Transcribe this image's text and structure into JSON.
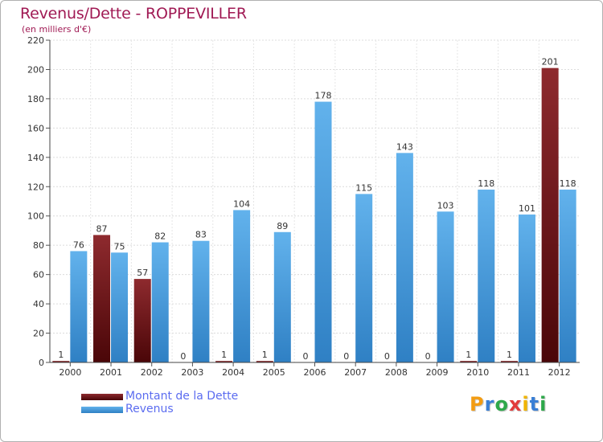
{
  "header": {
    "title": "Revenus/Dette - ROPPEVILLER",
    "subtitle": "(en milliers d'€)"
  },
  "chart_data": {
    "type": "bar",
    "title": "Revenus/Dette - ROPPEVILLER",
    "ylabel": "(en milliers d'€)",
    "xlabel": "",
    "ylim": [
      0,
      220
    ],
    "yticks": [
      0,
      20,
      40,
      60,
      80,
      100,
      120,
      140,
      160,
      180,
      200,
      220
    ],
    "grid": true,
    "categories": [
      "2000",
      "2001",
      "2002",
      "2003",
      "2004",
      "2005",
      "2006",
      "2007",
      "2008",
      "2009",
      "2010",
      "2011",
      "2012"
    ],
    "series": [
      {
        "name": "Montant de la Dette",
        "color": "#7a1418",
        "values": [
          1,
          87,
          57,
          0,
          1,
          1,
          0,
          0,
          0,
          0,
          1,
          1,
          201
        ]
      },
      {
        "name": "Revenus",
        "color": "#4fa3e3",
        "values": [
          76,
          75,
          82,
          83,
          104,
          89,
          178,
          115,
          143,
          103,
          118,
          101,
          118
        ]
      }
    ],
    "legend_position": "bottom-left"
  },
  "legend": {
    "items": [
      {
        "label": "Montant de la Dette",
        "color": "#7a1418"
      },
      {
        "label": "Revenus",
        "color": "#4fa3e3"
      }
    ]
  },
  "logo": {
    "letters": [
      "P",
      "r",
      "o",
      "x",
      "i",
      "t",
      "i"
    ],
    "colors": [
      "#f39c12",
      "#3a7fd5",
      "#2ea84a",
      "#e23b3b",
      "#f0b400",
      "#3a7fd5",
      "#2ea84a"
    ]
  }
}
